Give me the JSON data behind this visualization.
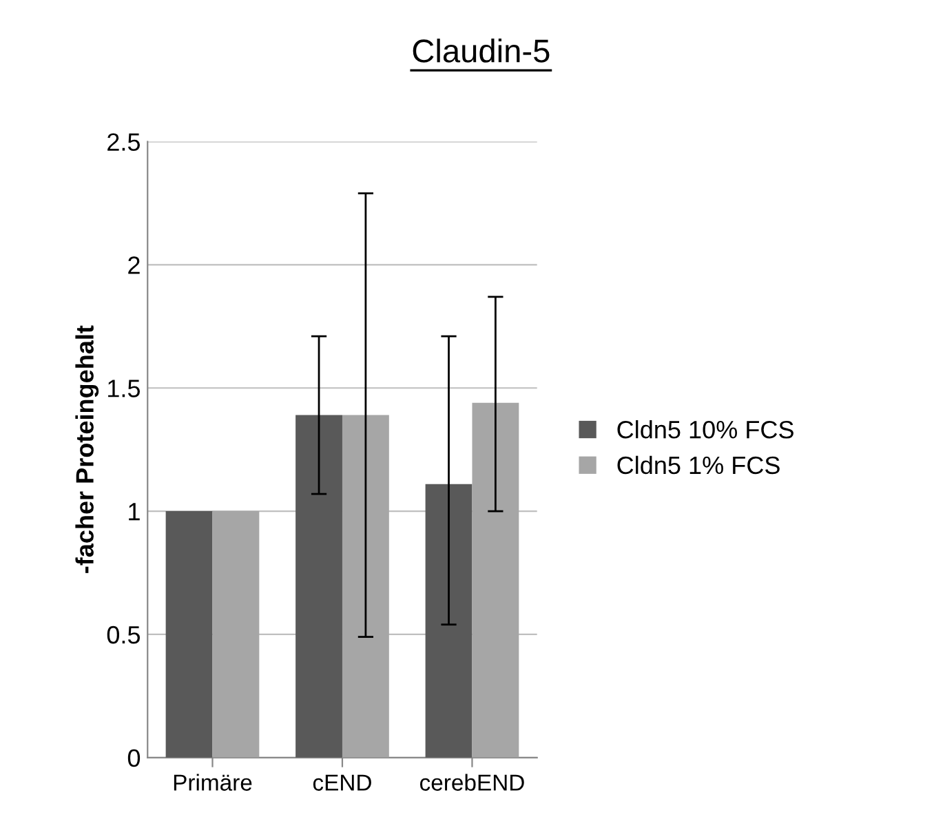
{
  "chart_data": {
    "type": "bar",
    "title": "Claudin-5",
    "ylabel": "-facher Proteingehalt",
    "categories": [
      "Primäre",
      "cEND",
      "cerebEND"
    ],
    "series": [
      {
        "name": "Cldn5 10% FCS",
        "color": "#595959",
        "values": [
          1,
          1.39,
          1.11
        ],
        "errors": [
          null,
          [
            1.07,
            1.71
          ],
          [
            0.54,
            1.71
          ]
        ]
      },
      {
        "name": "Cldn5 1% FCS",
        "color": "#a6a6a6",
        "values": [
          1,
          1.39,
          1.44
        ],
        "errors": [
          null,
          [
            0.49,
            2.29
          ],
          [
            1.0,
            1.87
          ]
        ]
      }
    ],
    "ylim": [
      0,
      2.5
    ],
    "yticks": [
      0,
      0.5,
      1,
      1.5,
      2,
      2.5
    ],
    "grid": "y",
    "legend": "right"
  }
}
